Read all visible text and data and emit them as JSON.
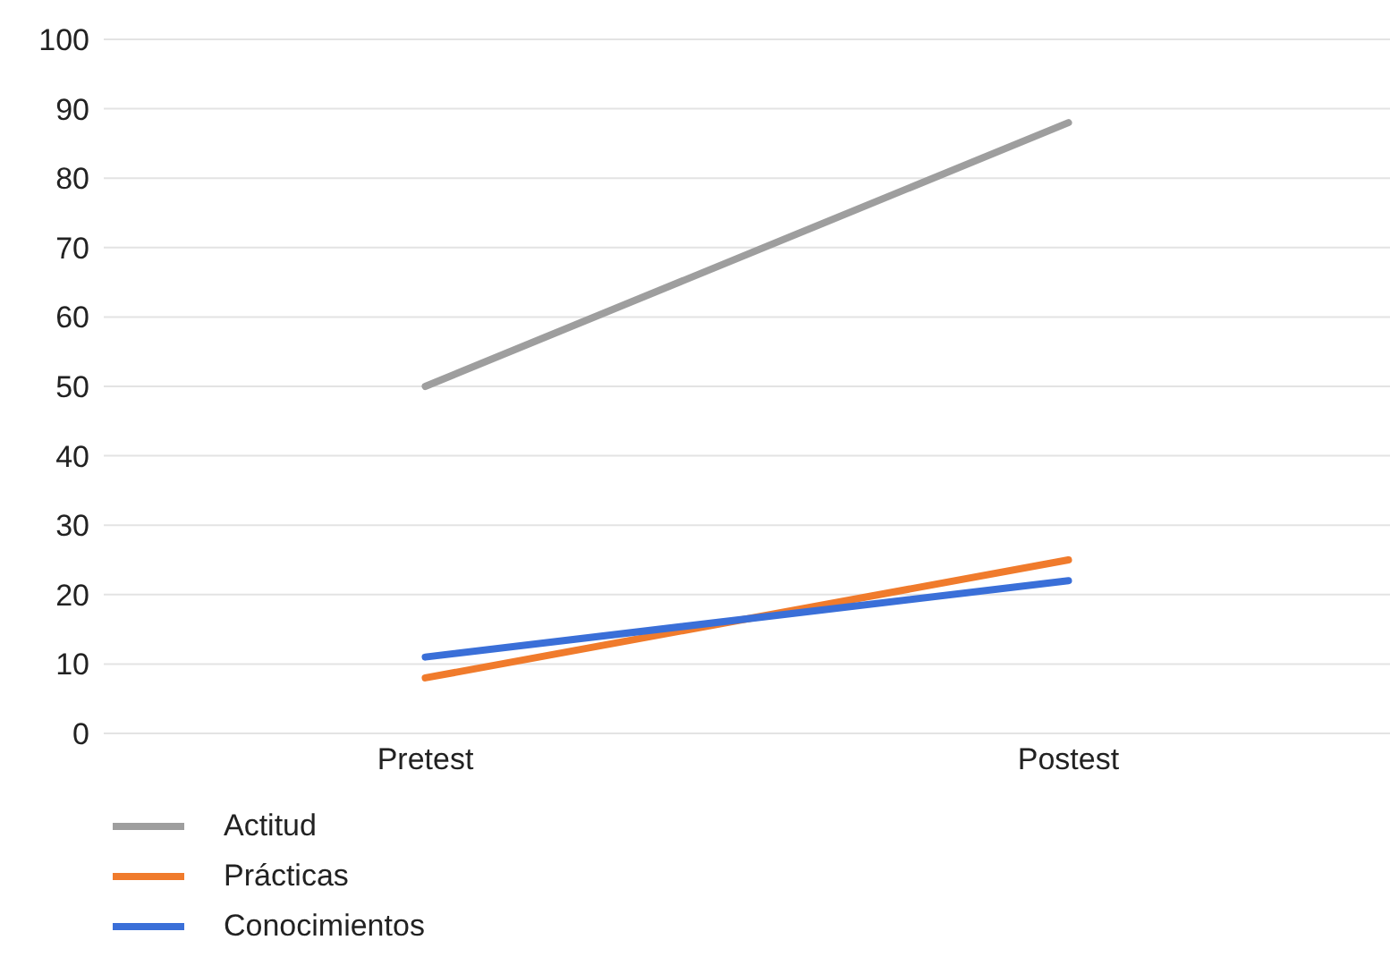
{
  "chart_data": {
    "type": "line",
    "categories": [
      "Pretest",
      "Postest"
    ],
    "series": [
      {
        "name": "Actitud",
        "color": "#9e9e9e",
        "values": [
          50,
          88
        ]
      },
      {
        "name": "Prácticas",
        "color": "#f07b2c",
        "values": [
          8,
          25
        ]
      },
      {
        "name": "Conocimientos",
        "color": "#3a6fd8",
        "values": [
          11,
          22
        ]
      }
    ],
    "ylim": [
      0,
      100
    ],
    "yticks": [
      0,
      10,
      20,
      30,
      40,
      50,
      60,
      70,
      80,
      90,
      100
    ],
    "grid": "y",
    "legend": "bottom left",
    "marker": "none",
    "line_style": "solid"
  }
}
